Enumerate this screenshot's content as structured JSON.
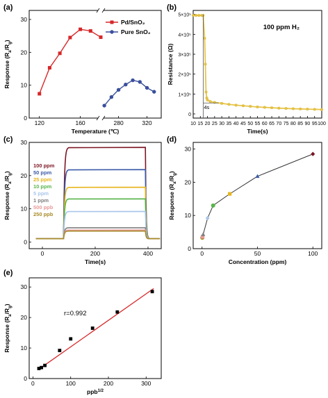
{
  "chart_data": [
    {
      "panel_label": "(a)",
      "type": "line",
      "xlabel": "Temperature (℃)",
      "ylabel": "Response (R_a/R_g)",
      "xlim_left": [
        110,
        180
      ],
      "xlim_right": [
        255,
        340
      ],
      "ylim": [
        0,
        30
      ],
      "xticks": [
        120,
        160,
        280,
        320
      ],
      "yticks": [
        0,
        10,
        20,
        30
      ],
      "axis_break": true,
      "legend_position": "top-right",
      "colors": {
        "pd": "#d62728",
        "pure": "#3a4f9c"
      },
      "series": [
        {
          "name": "Pd/SnO₂",
          "x": [
            120,
            130,
            140,
            150,
            160,
            170,
            180
          ],
          "values": [
            7.4,
            15.3,
            19.7,
            24.5,
            27.0,
            26.5,
            24.6
          ]
        },
        {
          "name": "Pure SnO₂",
          "x": [
            260,
            270,
            280,
            290,
            300,
            310,
            320,
            330
          ],
          "values": [
            3.8,
            6.4,
            8.6,
            10.2,
            11.5,
            11.0,
            9.2,
            8.0
          ]
        }
      ]
    },
    {
      "panel_label": "(b)",
      "type": "line",
      "title": "100 ppm H₂",
      "xlabel": "Time(s)",
      "ylabel": "Resistance (Ω)",
      "xlim": [
        10,
        100
      ],
      "ylim": [
        0,
        520000
      ],
      "xticks": [
        10,
        15,
        20,
        25,
        30,
        35,
        40,
        45,
        50,
        55,
        60,
        65,
        70,
        75,
        80,
        85,
        90,
        95,
        100
      ],
      "yticks": [
        "0",
        "1×10⁵",
        "2×10⁵",
        "3×10⁵",
        "4×10⁵",
        "5×10⁵"
      ],
      "ytick_values": [
        0,
        100000,
        200000,
        300000,
        400000,
        500000
      ],
      "annotation": "4s",
      "color": "#e8c547",
      "series": [
        {
          "x": [
            10,
            12,
            14,
            16,
            17,
            18,
            18.5,
            19,
            19.5,
            20,
            22,
            25,
            30,
            35,
            40,
            45,
            50,
            55,
            60,
            65,
            70,
            75,
            80,
            85,
            90,
            95,
            100
          ],
          "values": [
            495000,
            495000,
            495000,
            495000,
            495000,
            380000,
            250000,
            110000,
            80000,
            70000,
            62000,
            58000,
            53000,
            48000,
            44000,
            41000,
            38000,
            35000,
            33000,
            31000,
            29000,
            27500,
            26000,
            25000,
            24000,
            23000,
            22000
          ]
        }
      ]
    },
    {
      "panel_label": "(c)",
      "type": "line",
      "xlabel": "Time(s)",
      "ylabel": "Response (R_a/R_g)",
      "xlim": [
        -50,
        450
      ],
      "ylim": [
        -2,
        30
      ],
      "xticks": [
        0,
        200,
        400
      ],
      "yticks": [
        0,
        10,
        20,
        30
      ],
      "on_time": 80,
      "off_time": 390,
      "series": [
        {
          "name": "100 ppm",
          "value": 28.5,
          "color": "#7b1522"
        },
        {
          "name": "50 ppm",
          "value": 21.8,
          "color": "#3b5ba8"
        },
        {
          "name": "25 ppm",
          "value": 16.5,
          "color": "#e7b51c"
        },
        {
          "name": "10 ppm",
          "value": 13.0,
          "color": "#58b54a"
        },
        {
          "name": "5 ppm",
          "value": 9.2,
          "color": "#a9c6ea"
        },
        {
          "name": "1 ppm",
          "value": 4.3,
          "color": "#7f7f7f"
        },
        {
          "name": "500 ppb",
          "value": 3.6,
          "color": "#e89a9a"
        },
        {
          "name": "250 ppb",
          "value": 3.3,
          "color": "#a88b2a"
        }
      ]
    },
    {
      "panel_label": "(d)",
      "type": "line",
      "xlabel": "Concentration (ppm)",
      "ylabel": "Response (R_a/R_g)",
      "xlim": [
        -8,
        108
      ],
      "ylim": [
        0,
        32
      ],
      "xticks": [
        0,
        50,
        100
      ],
      "yticks": [
        0,
        10,
        20,
        30
      ],
      "series": [
        {
          "x": [
            0.25,
            0.5,
            1,
            5,
            10,
            25,
            50,
            100
          ],
          "values": [
            3.3,
            3.6,
            4.3,
            9.2,
            13.0,
            16.5,
            21.8,
            28.5
          ],
          "colors": [
            "#a88b2a",
            "#e89a9a",
            "#7f7f7f",
            "#a9c6ea",
            "#58b54a",
            "#e7b51c",
            "#3b5ba8",
            "#7b1522"
          ]
        }
      ]
    },
    {
      "panel_label": "(e)",
      "type": "scatter",
      "xlabel": "ppb^1/2",
      "ylabel": "Response (R_a/R_g)",
      "xlim": [
        -10,
        340
      ],
      "ylim": [
        0,
        33
      ],
      "xticks": [
        0,
        100,
        200,
        300
      ],
      "yticks": [
        0,
        10,
        20,
        30
      ],
      "annotation": "r=0.992",
      "fit_color": "#d62728",
      "series": [
        {
          "x": [
            15.8,
            22.4,
            31.6,
            70.7,
            100,
            158,
            223.6,
            316.2
          ],
          "values": [
            3.3,
            3.6,
            4.3,
            9.2,
            13.0,
            16.5,
            21.8,
            28.5
          ]
        }
      ],
      "fit_line": {
        "x": [
          15,
          320
        ],
        "values": [
          3.0,
          29.5
        ]
      }
    }
  ]
}
